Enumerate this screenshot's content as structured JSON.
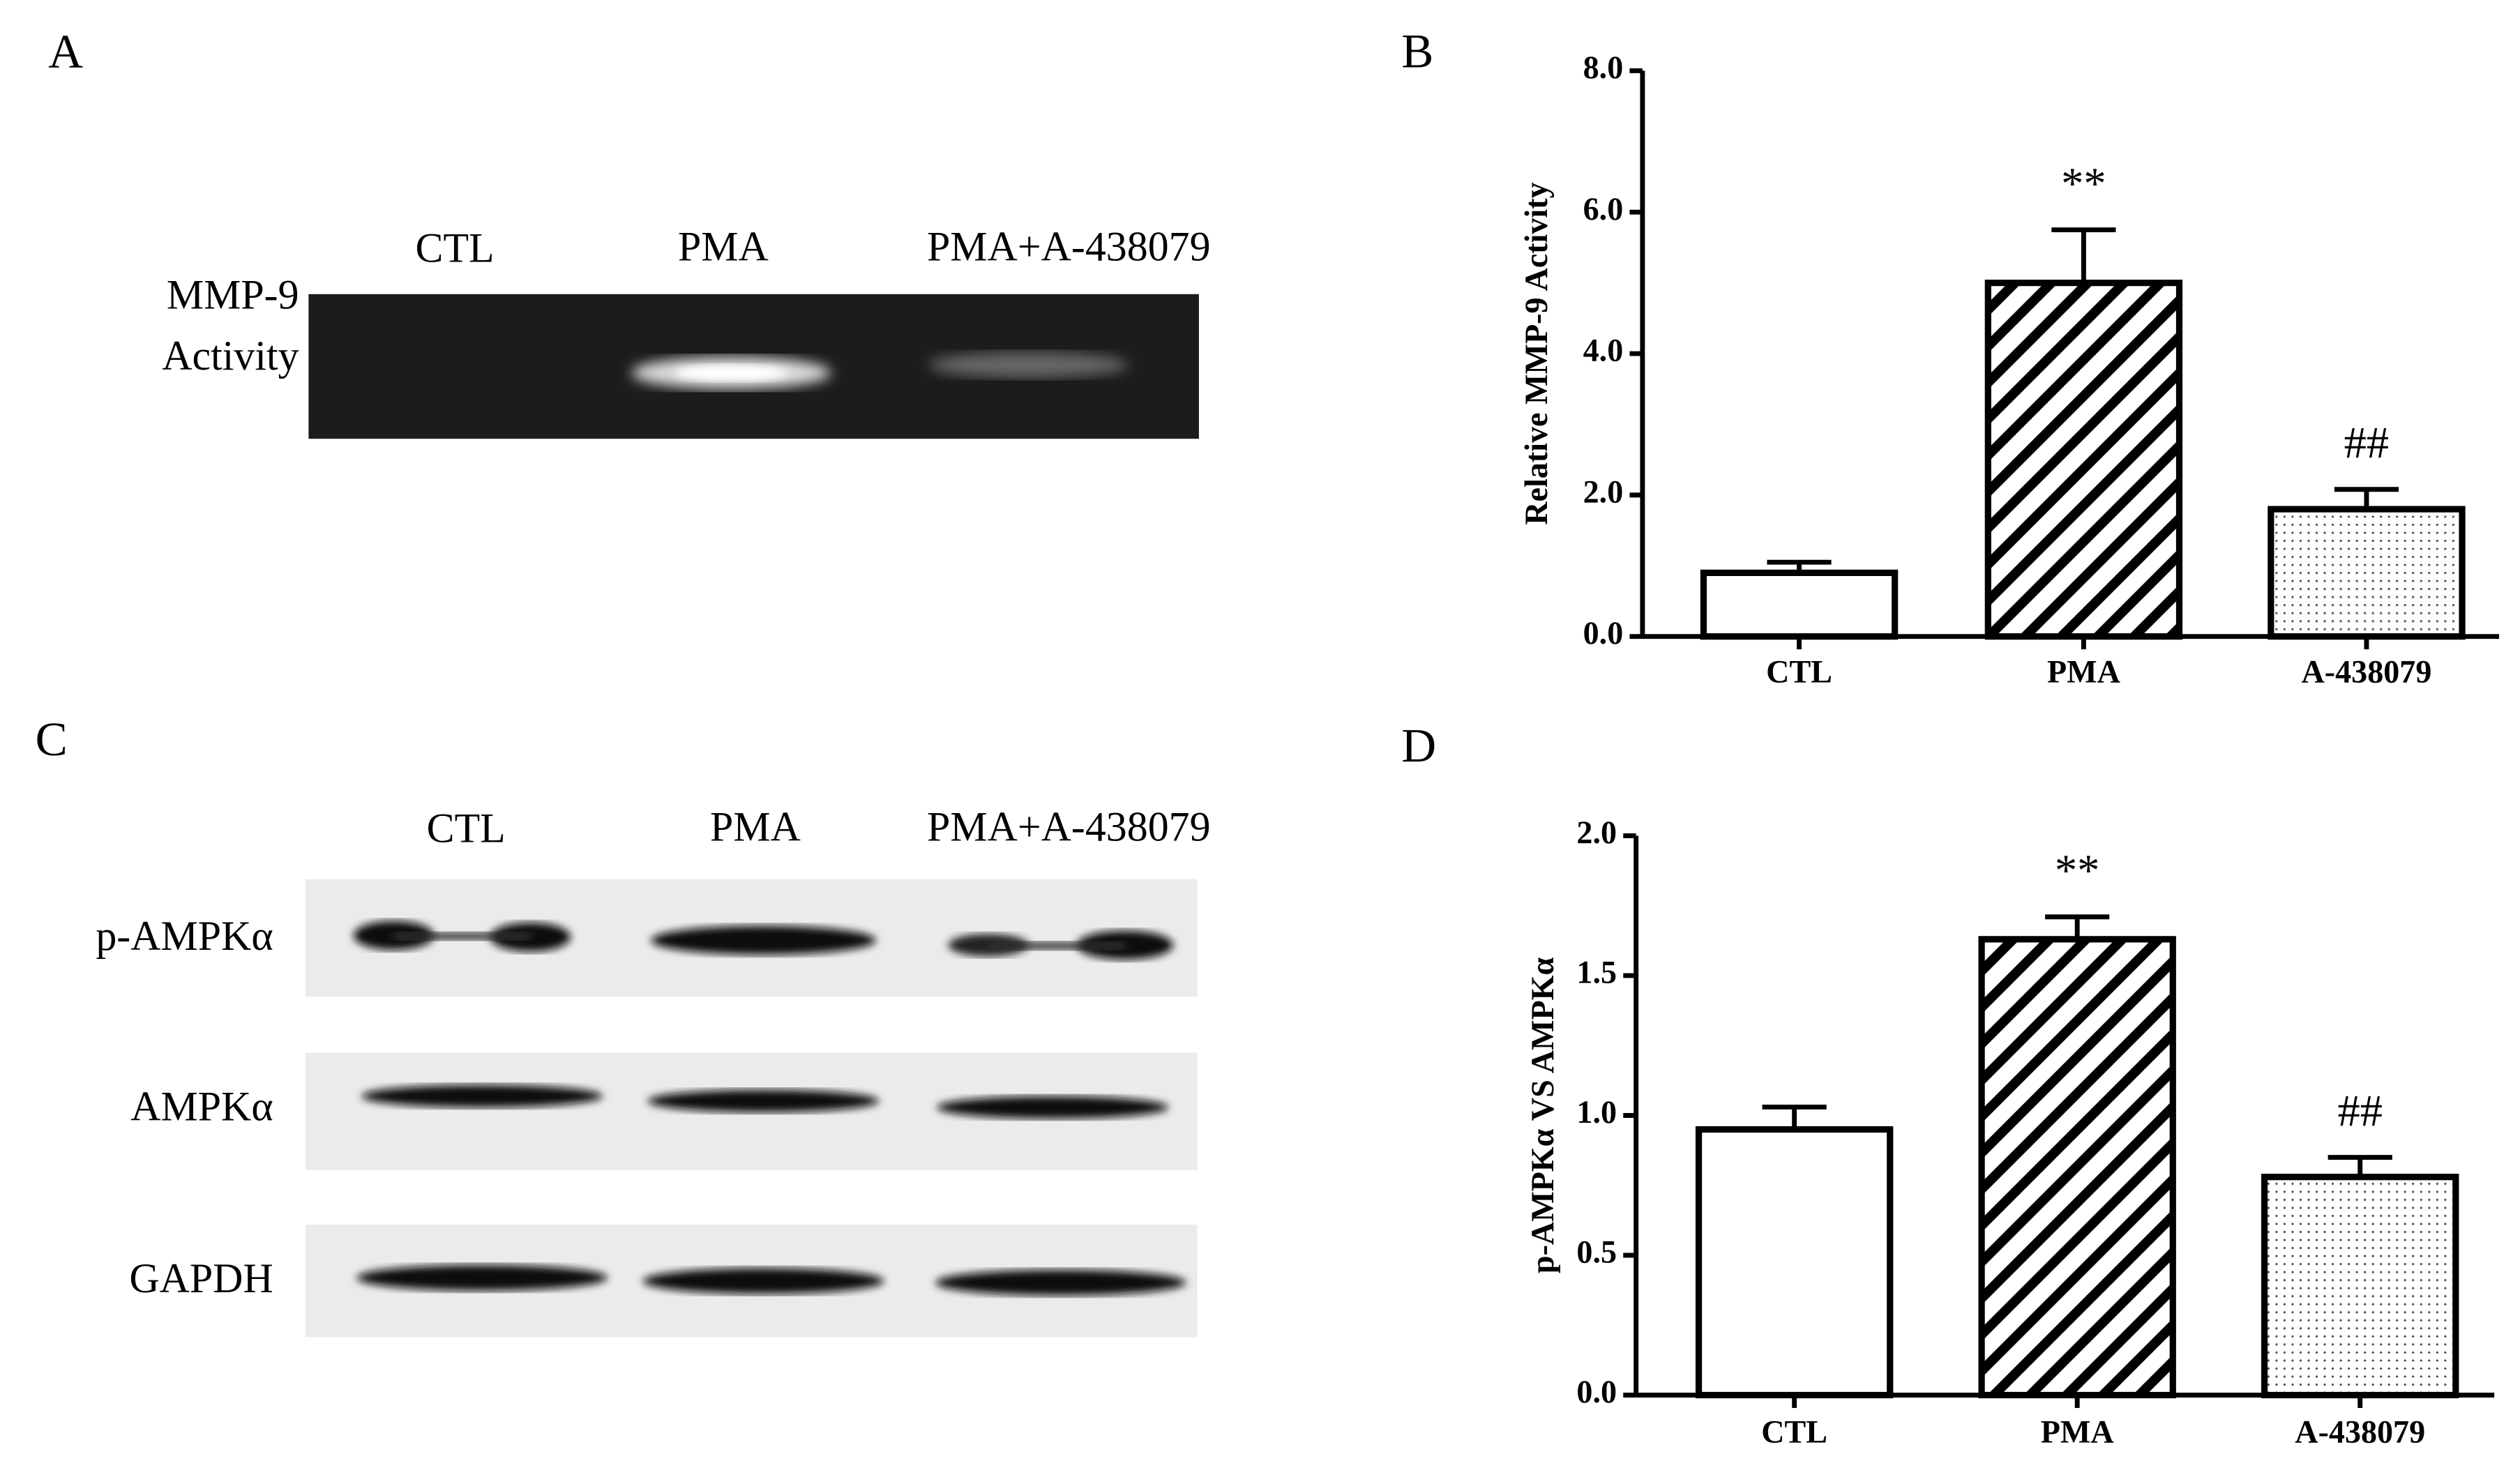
{
  "panels": [
    "A",
    "B",
    "C",
    "D"
  ],
  "gel": {
    "lanes": [
      "CTL",
      "PMA",
      "PMA+A-438079"
    ],
    "row_labels": [
      "MMP-9",
      "Activity"
    ]
  },
  "western": {
    "lanes": [
      "CTL",
      "PMA",
      "PMA+A-438079"
    ],
    "rows": [
      "p-AMPKα",
      "AMPKα",
      "GAPDH"
    ]
  },
  "chart_data": [
    {
      "type": "bar",
      "y_label": "Relative MMP-9 Activity",
      "categories": [
        "CTL",
        "PMA",
        "A-438079"
      ],
      "values": [
        0.9,
        5.0,
        1.8
      ],
      "errors": [
        0.15,
        0.75,
        0.28
      ],
      "value_annotations": [
        null,
        "**",
        "##"
      ],
      "patterns": [
        "none",
        "diagonal",
        "dots"
      ],
      "color": "#000000",
      "ylim": [
        0,
        8
      ],
      "yticks": [
        {
          "value": 0,
          "label": "0.0"
        },
        {
          "value": 2,
          "label": "2.0"
        },
        {
          "value": 4,
          "label": "4.0"
        },
        {
          "value": 6,
          "label": "6.0"
        },
        {
          "value": 8,
          "label": "8.0"
        }
      ]
    },
    {
      "type": "bar",
      "y_label": "p-AMPKα VS AMPKα",
      "categories": [
        "CTL",
        "PMA",
        "A-438079"
      ],
      "values": [
        0.95,
        1.63,
        0.78
      ],
      "errors": [
        0.08,
        0.08,
        0.07
      ],
      "value_annotations": [
        null,
        "**",
        "##"
      ],
      "patterns": [
        "none",
        "diagonal",
        "dots"
      ],
      "color": "#000000",
      "ylim": [
        0,
        2
      ],
      "yticks": [
        {
          "value": 0,
          "label": "0.0"
        },
        {
          "value": 0.5,
          "label": "0.5"
        },
        {
          "value": 1,
          "label": "1.0"
        },
        {
          "value": 1.5,
          "label": "1.5"
        },
        {
          "value": 2,
          "label": "2.0"
        }
      ]
    }
  ]
}
